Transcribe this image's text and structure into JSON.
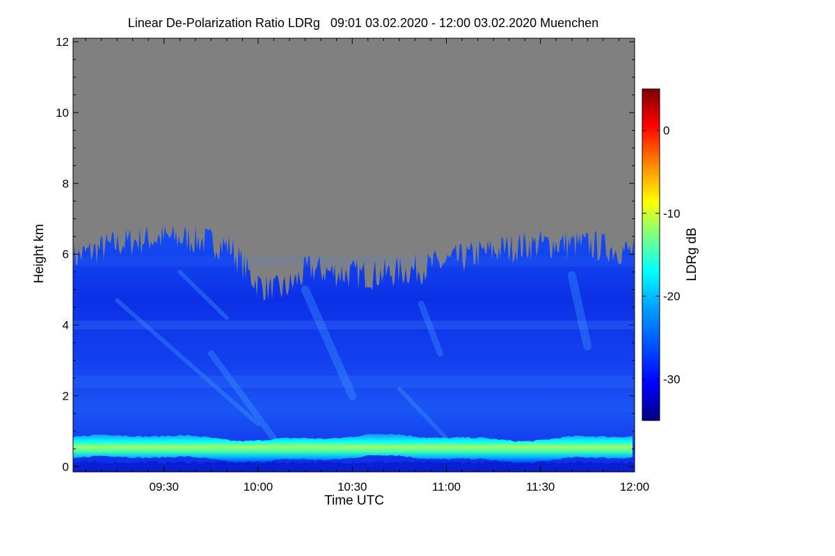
{
  "chart_data": {
    "type": "heatmap",
    "title": "Linear De-Polarization Ratio LDRg   09:01 03.02.2020 - 12:00 03.02.2020 Muenchen",
    "xlabel": "Time UTC",
    "ylabel": "Height km",
    "colorbar_label": "LDRg dB",
    "x_range_minutes": [
      541,
      720
    ],
    "y_range_km": [
      -0.15,
      12.1
    ],
    "x_ticks": [
      {
        "label": "09:30",
        "minutes": 570
      },
      {
        "label": "10:00",
        "minutes": 600
      },
      {
        "label": "10:30",
        "minutes": 630
      },
      {
        "label": "11:00",
        "minutes": 660
      },
      {
        "label": "11:30",
        "minutes": 690
      },
      {
        "label": "12:00",
        "minutes": 720
      }
    ],
    "y_ticks": [
      {
        "label": "0",
        "value": 0
      },
      {
        "label": "2",
        "value": 2
      },
      {
        "label": "4",
        "value": 4
      },
      {
        "label": "6",
        "value": 6
      },
      {
        "label": "8",
        "value": 8
      },
      {
        "label": "10",
        "value": 10
      },
      {
        "label": "12",
        "value": 12
      }
    ],
    "colorbar_range": [
      -35,
      5
    ],
    "colorbar_ticks": [
      {
        "label": "0",
        "value": 0
      },
      {
        "label": "-10",
        "value": -10
      },
      {
        "label": "-20",
        "value": -20
      },
      {
        "label": "-30",
        "value": -30
      }
    ],
    "no_signal_color": "#808080",
    "colormap": [
      "#00007f",
      "#0000ff",
      "#007fff",
      "#00ffff",
      "#7fff7f",
      "#ffff00",
      "#ff7f00",
      "#ff0000",
      "#7f0000"
    ],
    "features": {
      "signal_top_km_min": 5.0,
      "signal_top_km_max": 6.8,
      "background_ldr_db": -31,
      "boundary_layer_height_km": 0.5,
      "boundary_layer_ldr_db": -15
    }
  }
}
